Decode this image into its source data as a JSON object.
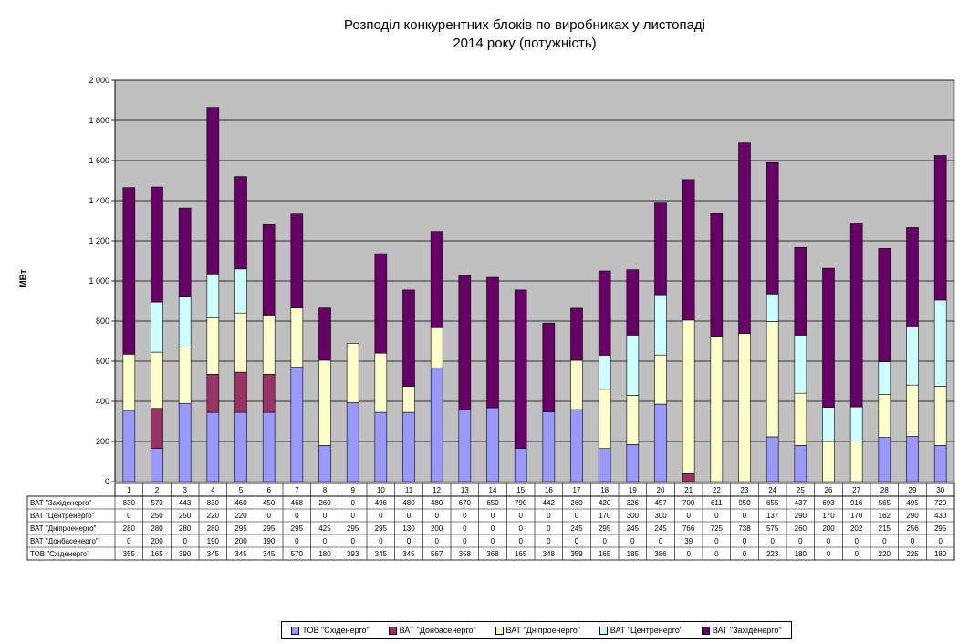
{
  "chart_data": {
    "type": "bar",
    "stacked": true,
    "title": [
      "Розподіл конкурентних  блоків по виробниках у листопаді",
      "2014 року  (потужність)"
    ],
    "xlabel": "",
    "ylabel": "МВт",
    "ylim": [
      0,
      2000
    ],
    "yticks": [
      "0",
      "200",
      "400",
      "600",
      "800",
      "1 000",
      "1 200",
      "1 400",
      "1 600",
      "1 800",
      "2 000"
    ],
    "ytick_values": [
      0,
      200,
      400,
      600,
      800,
      1000,
      1200,
      1400,
      1600,
      1800,
      2000
    ],
    "grid": true,
    "legend_position": "bottom",
    "categories": [
      "1",
      "2",
      "3",
      "4",
      "5",
      "6",
      "7",
      "8",
      "9",
      "10",
      "11",
      "12",
      "13",
      "14",
      "15",
      "16",
      "17",
      "18",
      "19",
      "20",
      "21",
      "22",
      "23",
      "24",
      "25",
      "26",
      "27",
      "28",
      "29",
      "30"
    ],
    "series": [
      {
        "name": "ТОВ \"Східенерго\"",
        "color": "#9999ff",
        "values": [
          355,
          165,
          390,
          345,
          345,
          345,
          570,
          180,
          393,
          345,
          345,
          567,
          358,
          368,
          165,
          348,
          359,
          165,
          185,
          386,
          0,
          0,
          0,
          223,
          180,
          0,
          0,
          220,
          225,
          180
        ]
      },
      {
        "name": "ВАТ \"Донбасенерго\"",
        "color": "#993366",
        "values": [
          0,
          200,
          0,
          190,
          200,
          190,
          0,
          0,
          0,
          0,
          0,
          0,
          0,
          0,
          0,
          0,
          0,
          0,
          0,
          0,
          39,
          0,
          0,
          0,
          0,
          0,
          0,
          0,
          0,
          0
        ]
      },
      {
        "name": "ВАТ \"Дніпроенерго\"",
        "color": "#ffffcc",
        "values": [
          280,
          280,
          280,
          280,
          295,
          295,
          295,
          425,
          295,
          295,
          130,
          200,
          0,
          0,
          0,
          0,
          245,
          295,
          245,
          245,
          766,
          725,
          738,
          575,
          260,
          200,
          202,
          215,
          256,
          295
        ]
      },
      {
        "name": "ВАТ \"Центренерго\"",
        "color": "#ccffff",
        "values": [
          0,
          250,
          250,
          220,
          220,
          0,
          0,
          0,
          0,
          0,
          0,
          0,
          0,
          0,
          0,
          0,
          0,
          170,
          300,
          300,
          0,
          0,
          0,
          137,
          290,
          170,
          170,
          162,
          290,
          430
        ]
      },
      {
        "name": "ВАТ \"Західенерго\"",
        "color": "#660066",
        "values": [
          830,
          573,
          443,
          830,
          460,
          450,
          468,
          260,
          0,
          496,
          480,
          480,
          670,
          650,
          790,
          442,
          260,
          420,
          326,
          457,
          700,
          611,
          950,
          655,
          437,
          693,
          916,
          565,
          495,
          720
        ]
      }
    ],
    "table_row_order": [
      4,
      3,
      2,
      1,
      0
    ]
  }
}
